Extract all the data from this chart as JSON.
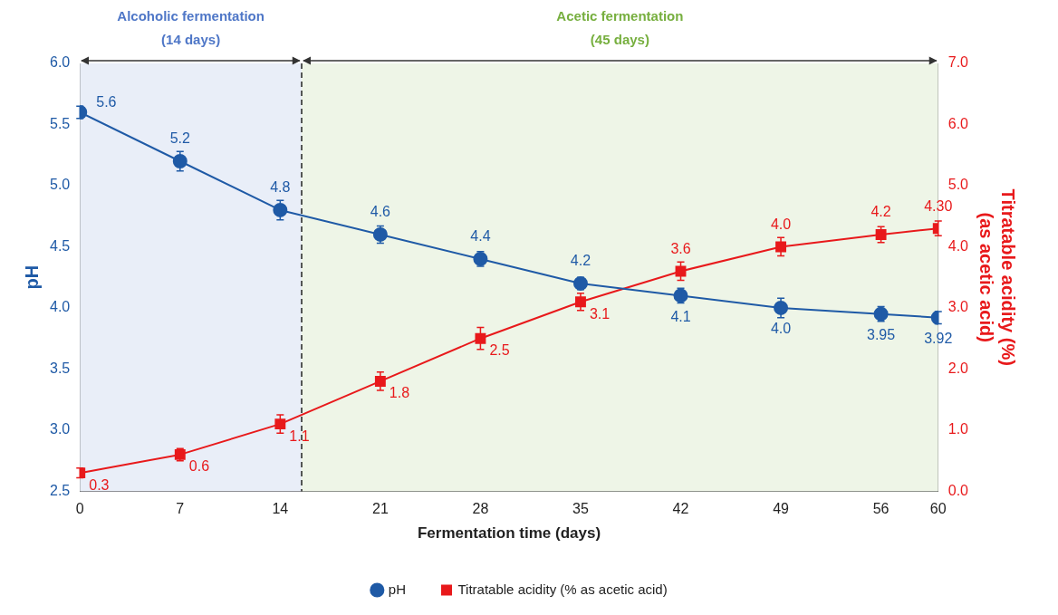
{
  "chart_data": {
    "type": "line",
    "xlabel": "Fermentation time (days)",
    "ylabel": "pH",
    "y2label": "Titratable acidity (%)\n(as acetic acid)",
    "x": [
      0,
      7,
      14,
      21,
      28,
      35,
      42,
      49,
      56,
      60
    ],
    "xlim": [
      0,
      60
    ],
    "xticks": [
      0,
      7,
      14,
      21,
      28,
      35,
      42,
      49,
      56,
      60
    ],
    "ylim": [
      2.5,
      6
    ],
    "yticks": [
      {
        "value": 2.5,
        "label": "2.5"
      },
      {
        "value": 3,
        "label": "3.0"
      },
      {
        "value": 3.5,
        "label": "3.5"
      },
      {
        "value": 4,
        "label": "4.0"
      },
      {
        "value": 4.5,
        "label": "4.5"
      },
      {
        "value": 5,
        "label": "5.0"
      },
      {
        "value": 5.5,
        "label": "5.5"
      },
      {
        "value": 6,
        "label": "6.0"
      }
    ],
    "y2lim": [
      0,
      7
    ],
    "y2ticks": [
      {
        "value": 0,
        "label": "0.0"
      },
      {
        "value": 1,
        "label": "1.0"
      },
      {
        "value": 2,
        "label": "2.0"
      },
      {
        "value": 3,
        "label": "3.0"
      },
      {
        "value": 4,
        "label": "4.0"
      },
      {
        "value": 5,
        "label": "5.0"
      },
      {
        "value": 6,
        "label": "6.0"
      },
      {
        "value": 7,
        "label": "7.0"
      }
    ],
    "series": [
      {
        "name": "pH",
        "color": "#1f5aa6",
        "marker": "circle",
        "values": [
          5.6,
          5.2,
          4.8,
          4.6,
          4.4,
          4.2,
          4.1,
          4.0,
          3.95,
          3.92
        ],
        "errors": [
          0.05,
          0.08,
          0.08,
          0.07,
          0.06,
          0.05,
          0.06,
          0.08,
          0.06,
          0.05
        ],
        "value_labels": [
          "5.6",
          "5.2",
          "4.8",
          "4.6",
          "4.4",
          "4.2",
          "4.1",
          "4.0",
          "3.95",
          "3.92"
        ]
      },
      {
        "name": "Titratable acidity (% as acetic acid)",
        "color": "#e8191b",
        "marker": "square",
        "axis": "y2",
        "values": [
          0.3,
          0.6,
          1.1,
          1.8,
          2.5,
          3.1,
          3.6,
          4.0,
          4.2,
          4.3
        ],
        "errors": [
          0.08,
          0.1,
          0.15,
          0.15,
          0.18,
          0.14,
          0.15,
          0.15,
          0.13,
          0.12
        ],
        "value_labels": [
          "0.3",
          "0.6",
          "1.1",
          "1.8",
          "2.5",
          "3.1",
          "3.6",
          "4.0",
          "4.2",
          "4.30"
        ]
      }
    ],
    "bands": [
      {
        "axis": "x",
        "from": 0,
        "to": 15.5,
        "label": "Alcoholic fermentation\n(14 days)",
        "color": "#e9eef8"
      },
      {
        "axis": "x",
        "from": 15.5,
        "to": 60,
        "label": "Acetic fermentation\n(45 days)",
        "color": "#eef5e7"
      }
    ],
    "ref_lines": [
      {
        "axis": "x",
        "value": 15.5,
        "line_style": "dashed",
        "color": "#222222"
      }
    ],
    "grid": false,
    "legend": "bottom"
  }
}
